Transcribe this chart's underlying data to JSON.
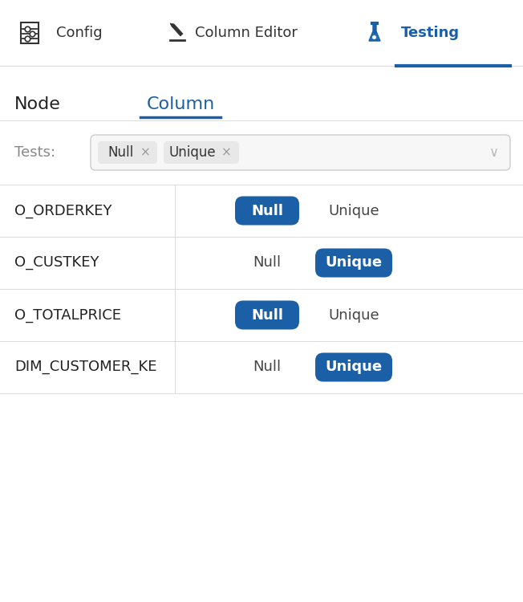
{
  "bg_color": "#ffffff",
  "tab_separator_color": "#e0e0e0",
  "active_tab_color": "#1b5fa6",
  "tab_text_color_inactive": "#333333",
  "node_header_color": "#222222",
  "column_header_color": "#1b5fa6",
  "column_header_underline_color": "#1b5fa6",
  "tests_label": "Tests:",
  "tests_label_color": "#888888",
  "filter_box_border": "#cccccc",
  "filter_box_bg": "#f7f7f7",
  "filter_tag_bg": "#e8e8e8",
  "filter_tag_text_color": "#333333",
  "table_rows": [
    {
      "node": "O_ORDERKEY",
      "null_active": true,
      "unique_active": false
    },
    {
      "node": "O_CUSTKEY",
      "null_active": false,
      "unique_active": true
    },
    {
      "node": "O_TOTALPRICE",
      "null_active": true,
      "unique_active": false
    },
    {
      "node": "DIM_CUSTOMER_KE",
      "null_active": false,
      "unique_active": true
    }
  ],
  "button_active_bg": "#1b5fa6",
  "button_active_text": "#ffffff",
  "button_inactive_text": "#444444",
  "row_separator_color": "#dddddd",
  "col_separator_color": "#dddddd"
}
